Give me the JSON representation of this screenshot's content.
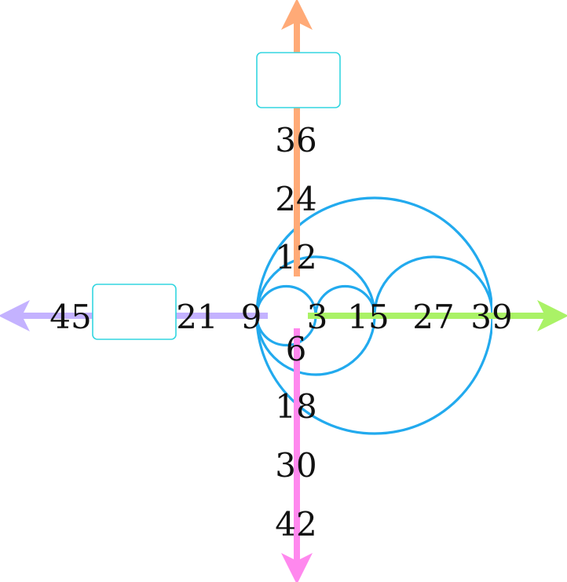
{
  "labels": {
    "n3": "3",
    "n6": "6",
    "n9": "9",
    "n12": "12",
    "n15": "15",
    "n18": "18",
    "n21": "21",
    "n24": "24",
    "n27": "27",
    "n30": "30",
    "n36": "36",
    "n39": "39",
    "n42": "42",
    "n45": "45"
  },
  "blank_boxes": 2,
  "colors": {
    "spiral": "#22aaee",
    "axis_up": "#ffaa77",
    "axis_right": "#aaf266",
    "axis_down": "#ff88ee",
    "axis_left": "#c4b2ff",
    "box_border": "#33d6e0"
  }
}
